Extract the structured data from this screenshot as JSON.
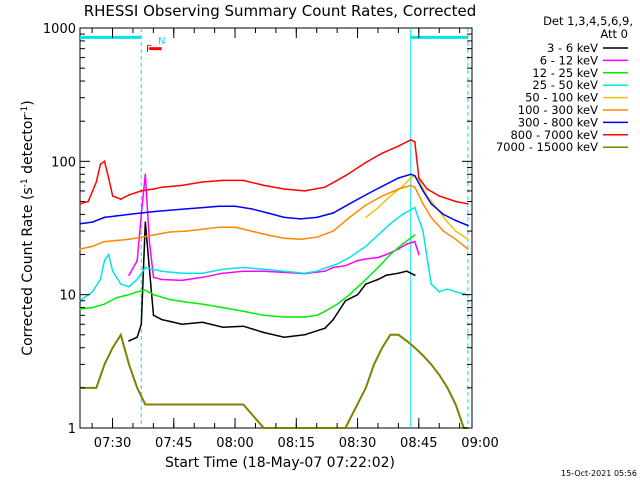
{
  "chart_data": {
    "type": "line",
    "title": "RHESSI Observing Summary Count Rates, Corrected",
    "xlabel": "Start Time (18-May-07 07:22:02)",
    "ylabel_main": "Corrected Count Rate (s",
    "ylabel_sup1": "-1",
    "ylabel_mid": " detector",
    "ylabel_sup2": "-1",
    "ylabel_end": ")",
    "y_scale": "log",
    "ylim": [
      1,
      1000
    ],
    "x_unit": "minutes since 07:22:02",
    "xlim": [
      0,
      96
    ],
    "x_ticks": [
      {
        "t": 7.97,
        "label": "07:30"
      },
      {
        "t": 22.97,
        "label": "07:45"
      },
      {
        "t": 37.97,
        "label": "08:00"
      },
      {
        "t": 52.97,
        "label": "08:15"
      },
      {
        "t": 67.97,
        "label": "08:30"
      },
      {
        "t": 82.97,
        "label": "08:45"
      },
      {
        "t": 97.97,
        "label": "09:00"
      }
    ],
    "y_ticks": [
      {
        "v": 1,
        "label": "1"
      },
      {
        "v": 10,
        "label": "10"
      },
      {
        "v": 100,
        "label": "100"
      },
      {
        "v": 1000,
        "label": "1000"
      }
    ],
    "detectors_label": "Det 1,3,4,5,6,9,",
    "attenuator_label": "Att 0",
    "flag_labels": {
      "F": "F",
      "N": "N"
    },
    "series": [
      {
        "name": "3 - 6 keV",
        "color": "#000000",
        "t": [
          0,
          5,
          10,
          12,
          14,
          15,
          16,
          18,
          20,
          22,
          25,
          30,
          35,
          40,
          45,
          50,
          55,
          60,
          62,
          65,
          68,
          70,
          73,
          75,
          78,
          80,
          82
        ],
        "v": [
          null,
          null,
          null,
          4.5,
          4.8,
          6,
          35,
          7,
          6.5,
          6.3,
          6,
          6.2,
          5.7,
          5.8,
          5.2,
          4.8,
          5.0,
          5.6,
          6.5,
          9,
          10,
          12,
          13,
          14,
          14.5,
          15,
          14
        ]
      },
      {
        "name": "6 - 12 keV",
        "color": "#ff00ff",
        "t": [
          10,
          12,
          14,
          15,
          16,
          17,
          18,
          20,
          25,
          30,
          35,
          40,
          45,
          50,
          55,
          60,
          62,
          65,
          68,
          70,
          73,
          75,
          78,
          80,
          82,
          83
        ],
        "v": [
          null,
          14,
          18,
          40,
          80,
          25,
          13.5,
          13,
          12.8,
          13.5,
          14.5,
          15,
          15,
          14.7,
          14.4,
          15,
          16,
          16.5,
          18,
          18.5,
          19,
          20,
          22,
          24,
          25,
          20
        ]
      },
      {
        "name": "12 - 25 keV",
        "color": "#00ee00",
        "t": [
          0,
          3,
          6,
          9,
          12,
          14,
          16,
          18,
          22,
          26,
          30,
          35,
          40,
          45,
          50,
          55,
          58,
          60,
          63,
          66,
          70,
          73,
          76,
          79,
          82
        ],
        "v": [
          7.8,
          8,
          8.5,
          9.5,
          10,
          10.5,
          10.8,
          10,
          9.2,
          8.8,
          8.5,
          8,
          7.5,
          7,
          6.8,
          6.8,
          7,
          7.5,
          8.5,
          10,
          13,
          16,
          20,
          24,
          28
        ]
      },
      {
        "name": "25 - 50 keV",
        "color": "#00e5e5",
        "t": [
          0,
          3,
          5,
          6,
          7,
          8,
          10,
          12,
          14,
          16,
          20,
          25,
          30,
          35,
          40,
          45,
          50,
          55,
          58,
          60,
          63,
          66,
          70,
          73,
          76,
          79,
          82,
          84,
          86,
          88,
          90,
          92,
          95
        ],
        "v": [
          9,
          10.5,
          13,
          18,
          20,
          15,
          12,
          11.5,
          13,
          16,
          15,
          14.5,
          14.5,
          15.5,
          16,
          15.5,
          15,
          14.5,
          15,
          15.8,
          17,
          19,
          23,
          28,
          34,
          40,
          45,
          30,
          12,
          10.5,
          11,
          10.5,
          10
        ]
      },
      {
        "name": "50 - 100 keV",
        "color": "#e8c800",
        "t": [
          70,
          73,
          76,
          79,
          81,
          82,
          83,
          85,
          88,
          90,
          92,
          95
        ],
        "v": [
          38,
          45,
          55,
          65,
          75,
          78,
          72,
          55,
          42,
          35,
          30,
          26
        ]
      },
      {
        "name": "100 - 300 keV",
        "color": "#ff8800",
        "t": [
          0,
          3,
          6,
          9,
          12,
          15,
          18,
          22,
          26,
          30,
          34,
          38,
          42,
          46,
          50,
          54,
          58,
          62,
          66,
          70,
          74,
          78,
          81,
          82,
          84,
          86,
          89,
          92,
          95
        ],
        "v": [
          22,
          23,
          25,
          25.5,
          26,
          27,
          28,
          29.5,
          30,
          31,
          32,
          32,
          30,
          28,
          26.5,
          26,
          27,
          30,
          38,
          47,
          55,
          62,
          66,
          64,
          48,
          38,
          30,
          26,
          22
        ]
      },
      {
        "name": "300 - 800 keV",
        "color": "#0000ff",
        "t": [
          0,
          3,
          6,
          9,
          12,
          15,
          18,
          22,
          26,
          30,
          34,
          38,
          42,
          46,
          50,
          54,
          58,
          62,
          66,
          70,
          74,
          78,
          81,
          82,
          84,
          86,
          89,
          92,
          95
        ],
        "v": [
          34,
          35,
          38,
          39,
          40,
          41,
          42,
          43,
          44,
          45,
          46,
          46,
          44,
          41,
          38,
          37,
          38,
          41,
          48,
          56,
          65,
          75,
          80,
          78,
          60,
          48,
          40,
          36,
          33
        ]
      },
      {
        "name": "800 - 7000 keV",
        "color": "#ff0000",
        "t": [
          0,
          2,
          4,
          5,
          6,
          7,
          8,
          10,
          12,
          15,
          18,
          20,
          25,
          30,
          35,
          40,
          45,
          50,
          55,
          60,
          65,
          70,
          74,
          78,
          81,
          82,
          83,
          85,
          88,
          92,
          95
        ],
        "v": [
          48,
          50,
          70,
          95,
          100,
          75,
          55,
          52,
          56,
          60,
          62,
          64,
          66,
          70,
          72,
          72,
          66,
          62,
          60,
          64,
          78,
          98,
          115,
          130,
          145,
          140,
          75,
          62,
          55,
          50,
          48
        ]
      },
      {
        "name": "7000 - 15000 keV",
        "color": "#808000",
        "t": [
          0,
          4,
          6,
          8,
          10,
          12,
          14,
          16,
          20,
          25,
          30,
          35,
          40,
          45,
          50,
          55,
          60,
          65,
          70,
          72,
          74,
          76,
          78,
          80,
          82,
          84,
          86,
          88,
          90,
          92,
          94,
          95
        ],
        "v": [
          2,
          2,
          3,
          4,
          5,
          3,
          2,
          1.5,
          1.5,
          1.5,
          1.5,
          1.5,
          1.5,
          1,
          1,
          1,
          1,
          1,
          2,
          3,
          4,
          5,
          5,
          4.5,
          4,
          3.5,
          3,
          2.5,
          2,
          1.5,
          1,
          1
        ]
      }
    ],
    "vlines": [
      {
        "t": 15,
        "style": "dashed",
        "color": "#00e5e5"
      },
      {
        "t": 81,
        "style": "solid",
        "color": "#00e5e5"
      },
      {
        "t": 95,
        "style": "dashed",
        "color": "#00e5e5"
      }
    ],
    "bars": [
      {
        "t0": 0,
        "t1": 15,
        "v": 850,
        "color": "#00e5e5"
      },
      {
        "t0": 81,
        "t1": 95,
        "v": 850,
        "color": "#00e5e5"
      },
      {
        "t0": 17,
        "t1": 20,
        "v": 700,
        "color": "#ff0000"
      }
    ],
    "grid": false,
    "legend_position": "right"
  },
  "footer": {
    "stamp": "15-Oct-2021 05:56"
  }
}
